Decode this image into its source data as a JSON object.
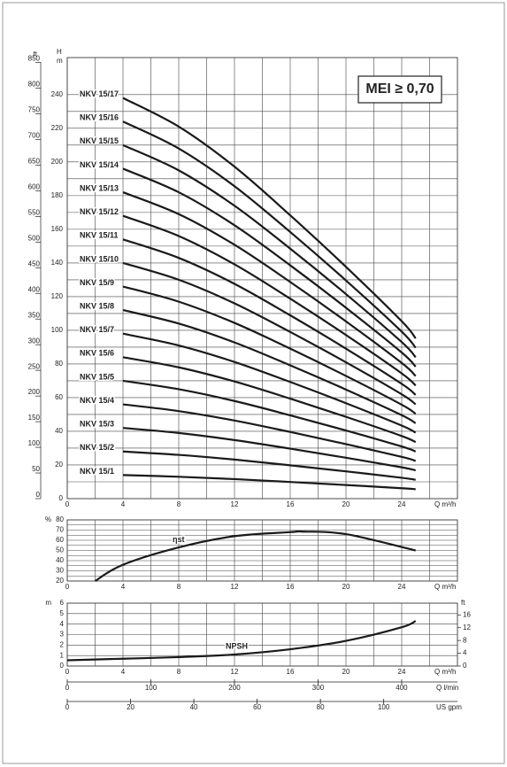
{
  "chart_data": [
    {
      "type": "line",
      "annotation": "MEI ≥ 0,70",
      "x_label": "Q m³/h",
      "y_label": "H",
      "y_unit": "m",
      "y2_label": "ft",
      "x": [
        4,
        8,
        12,
        16,
        20,
        24,
        25
      ],
      "xlim": [
        0,
        28
      ],
      "xticks": [
        0,
        4,
        8,
        12,
        16,
        20,
        24
      ],
      "ylim": [
        0,
        262
      ],
      "yticks": [
        0,
        20,
        40,
        60,
        80,
        100,
        120,
        140,
        160,
        180,
        200,
        220,
        240
      ],
      "y2lim": [
        0,
        859.6
      ],
      "y2ticks": [
        0,
        50,
        100,
        150,
        200,
        250,
        300,
        350,
        400,
        450,
        500,
        550,
        600,
        650,
        700,
        750,
        800,
        850
      ],
      "grid": true,
      "series": [
        {
          "name": "NKV 15/1",
          "color": "#1a1a1a",
          "values": [
            14,
            13,
            11.6,
            9.9,
            8.1,
            6.2,
            5.6
          ]
        },
        {
          "name": "NKV 15/2",
          "color": "#1a1a1a",
          "values": [
            28,
            26,
            23.2,
            19.8,
            16.2,
            12.4,
            11.2
          ]
        },
        {
          "name": "NKV 15/3",
          "color": "#1a1a1a",
          "values": [
            42,
            39,
            34.8,
            29.7,
            24.3,
            18.6,
            16.8
          ]
        },
        {
          "name": "NKV 15/4",
          "color": "#1a1a1a",
          "values": [
            56,
            52,
            46.4,
            39.6,
            32.4,
            24.8,
            22.4
          ]
        },
        {
          "name": "NKV 15/5",
          "color": "#1a1a1a",
          "values": [
            70,
            65,
            58,
            49.5,
            40.5,
            31,
            28
          ]
        },
        {
          "name": "NKV 15/6",
          "color": "#1a1a1a",
          "values": [
            84,
            78,
            69.6,
            59.4,
            48.6,
            37.2,
            33.6
          ]
        },
        {
          "name": "NKV 15/7",
          "color": "#1a1a1a",
          "values": [
            98,
            91,
            81.2,
            69.3,
            56.7,
            43.4,
            39.2
          ]
        },
        {
          "name": "NKV 15/8",
          "color": "#1a1a1a",
          "values": [
            112,
            104,
            92.8,
            79.2,
            64.8,
            49.6,
            44.8
          ]
        },
        {
          "name": "NKV 15/9",
          "color": "#1a1a1a",
          "values": [
            126,
            117,
            104.4,
            89.1,
            72.9,
            55.8,
            50.4
          ]
        },
        {
          "name": "NKV 15/10",
          "color": "#1a1a1a",
          "values": [
            140,
            130,
            116,
            99,
            81,
            62,
            56
          ]
        },
        {
          "name": "NKV 15/11",
          "color": "#1a1a1a",
          "values": [
            154,
            143,
            127.6,
            108.9,
            89.1,
            68.2,
            61.6
          ]
        },
        {
          "name": "NKV 15/12",
          "color": "#1a1a1a",
          "values": [
            168,
            156,
            139.2,
            118.8,
            97.2,
            74.4,
            67.2
          ]
        },
        {
          "name": "NKV 15/13",
          "color": "#1a1a1a",
          "values": [
            182,
            169,
            150.8,
            128.7,
            105.3,
            80.6,
            72.8
          ]
        },
        {
          "name": "NKV 15/14",
          "color": "#1a1a1a",
          "values": [
            196,
            182,
            162.4,
            138.6,
            113.4,
            86.8,
            78.4
          ]
        },
        {
          "name": "NKV 15/15",
          "color": "#1a1a1a",
          "values": [
            210,
            195,
            174,
            148.5,
            121.5,
            93,
            84
          ]
        },
        {
          "name": "NKV 15/16",
          "color": "#1a1a1a",
          "values": [
            224,
            208,
            185.6,
            158.4,
            129.6,
            99.2,
            89.6
          ]
        },
        {
          "name": "NKV 15/17",
          "color": "#1a1a1a",
          "values": [
            238,
            221,
            197.2,
            168.3,
            137.7,
            105.4,
            95.2
          ]
        }
      ]
    },
    {
      "type": "line",
      "x_label": "Q m³/h",
      "y_label": "%",
      "x": [
        2,
        4,
        8,
        12,
        16,
        17,
        20,
        25
      ],
      "xlim": [
        0,
        28
      ],
      "xticks": [
        0,
        4,
        8,
        12,
        16,
        20,
        24
      ],
      "ylim": [
        20,
        80
      ],
      "yticks": [
        20,
        30,
        40,
        50,
        60,
        70,
        80
      ],
      "grid": true,
      "series": [
        {
          "name": "ηst",
          "color": "#1a1a1a",
          "values": [
            20,
            36,
            53,
            64,
            68,
            68.5,
            66,
            50
          ]
        }
      ]
    },
    {
      "type": "line",
      "x_label": "Q m³/h",
      "y_label": "m",
      "y2_label": "ft",
      "x": [
        0,
        4,
        8,
        12,
        16,
        20,
        24,
        25
      ],
      "xlim": [
        0,
        28
      ],
      "xticks": [
        0,
        4,
        8,
        12,
        16,
        20,
        24
      ],
      "ylim": [
        0,
        6
      ],
      "yticks": [
        0,
        1,
        2,
        3,
        4,
        5,
        6
      ],
      "y2lim": [
        0,
        19.685
      ],
      "y2ticks": [
        0,
        4,
        8,
        12,
        16
      ],
      "grid": true,
      "series": [
        {
          "name": "NPSH",
          "color": "#1a1a1a",
          "values": [
            0.55,
            0.7,
            0.85,
            1.1,
            1.6,
            2.4,
            3.7,
            4.3
          ]
        }
      ],
      "x_axes": [
        {
          "label": "Q l/min",
          "lim": [
            0,
            466.7
          ],
          "ticks": [
            0,
            100,
            200,
            300,
            400
          ]
        },
        {
          "label": "US gpm",
          "lim": [
            0,
            123.3
          ],
          "ticks": [
            0,
            20,
            40,
            60,
            80,
            100
          ]
        }
      ]
    }
  ]
}
